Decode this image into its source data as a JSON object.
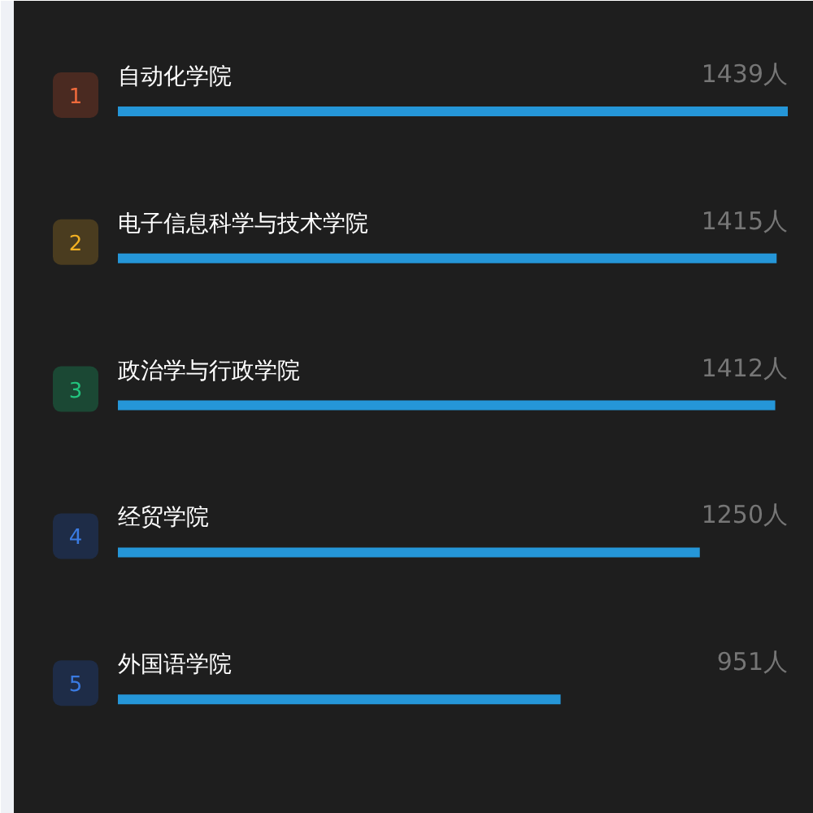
{
  "chart_data": {
    "type": "bar",
    "orientation": "horizontal",
    "categories": [
      "自动化学院",
      "电子信息科学与技术学院",
      "政治学与行政学院",
      "经贸学院",
      "外国语学院"
    ],
    "values": [
      1439,
      1415,
      1412,
      1250,
      951
    ],
    "value_labels": [
      "1439人",
      "1415人",
      "1412人",
      "1250人",
      "951人"
    ],
    "color": "#2596d8",
    "tick_labels": false,
    "annotations": [
      "1",
      "2",
      "3",
      "4",
      "5"
    ]
  }
}
